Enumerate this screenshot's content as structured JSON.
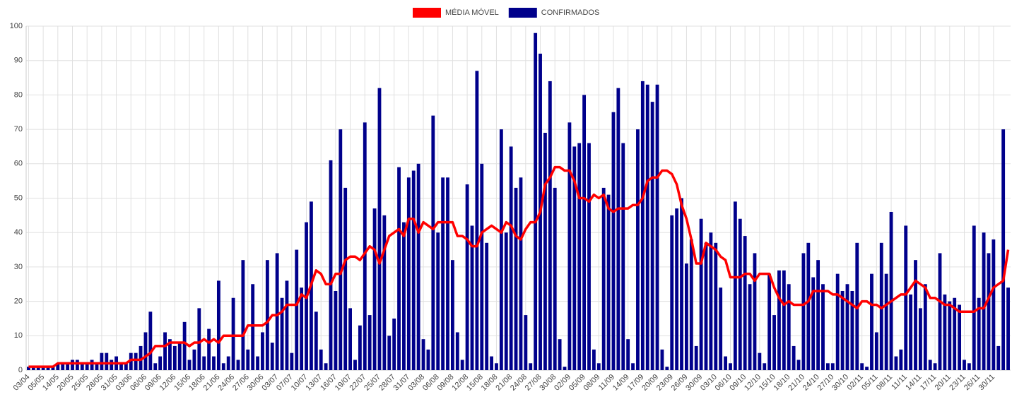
{
  "chart_data": {
    "type": "bar",
    "categories": [
      "03/04",
      null,
      null,
      "05/05",
      null,
      null,
      "14/05",
      null,
      null,
      "20/05",
      null,
      null,
      "25/05",
      null,
      null,
      "28/05",
      null,
      null,
      "31/05",
      null,
      null,
      "03/06",
      null,
      null,
      "06/06",
      null,
      null,
      "09/06",
      null,
      null,
      "12/06",
      null,
      null,
      "15/06",
      null,
      null,
      "18/06",
      null,
      null,
      "21/06",
      null,
      null,
      "24/06",
      null,
      null,
      "27/06",
      null,
      null,
      "30/06",
      null,
      null,
      "03/07",
      null,
      null,
      "07/07",
      null,
      null,
      "10/07",
      null,
      null,
      "13/07",
      null,
      null,
      "16/07",
      null,
      null,
      "19/07",
      null,
      null,
      "22/07",
      null,
      null,
      "25/07",
      null,
      null,
      "28/07",
      null,
      null,
      "31/07",
      null,
      null,
      "03/08",
      null,
      null,
      "06/08",
      null,
      null,
      "09/08",
      null,
      null,
      "12/08",
      null,
      null,
      "15/08",
      null,
      null,
      "18/08",
      null,
      null,
      "21/08",
      null,
      null,
      "24/08",
      null,
      null,
      "27/08",
      null,
      null,
      "30/08",
      null,
      null,
      "02/09",
      null,
      null,
      "05/09",
      null,
      null,
      "08/09",
      null,
      null,
      "11/09",
      null,
      null,
      "14/09",
      null,
      null,
      "17/09",
      null,
      null,
      "20/09",
      null,
      null,
      "23/09",
      null,
      null,
      "26/09",
      null,
      null,
      "30/09",
      null,
      null,
      "03/10",
      null,
      null,
      "06/10",
      null,
      null,
      "09/10",
      null,
      null,
      "12/10",
      null,
      null,
      "15/10",
      null,
      null,
      "18/10",
      null,
      null,
      "21/10",
      null,
      null,
      "24/10",
      null,
      null,
      "27/10",
      null,
      null,
      "30/10",
      null,
      null,
      "02/11",
      null,
      null,
      "05/11",
      null,
      null,
      "08/11",
      null,
      null,
      "11/11",
      null,
      null,
      "14/11",
      null,
      null,
      "17/11",
      null,
      null,
      "20/11",
      null,
      null,
      "23/11",
      null,
      null,
      "26/11",
      null,
      null,
      "30/11",
      null,
      null,
      null
    ],
    "series": [
      {
        "name": "MÉDIA MÓVEL",
        "type": "line",
        "color": "#ff0000",
        "values": [
          1,
          1,
          1,
          1,
          1,
          1,
          2,
          2,
          2,
          2,
          2,
          2,
          2,
          2,
          2,
          2,
          2,
          2,
          2,
          2,
          2,
          3,
          3,
          3,
          4,
          5,
          7,
          7,
          7,
          8,
          8,
          8,
          8,
          7,
          8,
          8,
          9,
          8,
          9,
          8,
          10,
          10,
          10,
          10,
          10,
          13,
          13,
          13,
          13,
          14,
          16,
          16,
          17,
          19,
          19,
          19,
          22,
          21,
          25,
          29,
          28,
          25,
          25,
          28,
          28,
          32,
          33,
          33,
          32,
          34,
          36,
          35,
          31,
          35,
          39,
          40,
          41,
          39,
          44,
          44,
          40,
          43,
          42,
          41,
          43,
          43,
          43,
          43,
          39,
          39,
          38,
          36,
          36,
          40,
          41,
          42,
          41,
          40,
          43,
          42,
          39,
          38,
          41,
          43,
          43,
          46,
          54,
          56,
          59,
          59,
          58,
          58,
          55,
          50,
          50,
          49,
          51,
          50,
          51,
          47,
          46,
          47,
          47,
          47,
          48,
          48,
          50,
          55,
          56,
          56,
          58,
          58,
          57,
          54,
          48,
          44,
          38,
          31,
          31,
          37,
          36,
          35,
          33,
          32,
          27,
          27,
          27,
          28,
          28,
          26,
          28,
          28,
          28,
          24,
          21,
          19,
          20,
          19,
          19,
          19,
          20,
          23,
          23,
          23,
          23,
          22,
          22,
          21,
          20,
          19,
          18,
          20,
          20,
          19,
          19,
          18,
          19,
          20,
          21,
          22,
          22,
          24,
          26,
          25,
          24,
          21,
          21,
          20,
          19,
          19,
          18,
          17,
          17,
          17,
          17,
          18,
          18,
          21,
          24,
          25,
          26,
          35
        ]
      },
      {
        "name": "CONFIRMADOS",
        "type": "bar",
        "color": "#00008b",
        "values": [
          1,
          1,
          1,
          1,
          1,
          1,
          2,
          2,
          2,
          3,
          3,
          2,
          2,
          3,
          2,
          5,
          5,
          3,
          4,
          2,
          2,
          5,
          5,
          7,
          11,
          17,
          2,
          4,
          11,
          9,
          7,
          8,
          14,
          3,
          6,
          18,
          4,
          12,
          4,
          26,
          2,
          4,
          21,
          3,
          32,
          6,
          25,
          4,
          11,
          32,
          8,
          34,
          21,
          26,
          5,
          35,
          24,
          43,
          49,
          17,
          6,
          2,
          61,
          23,
          70,
          53,
          18,
          3,
          13,
          72,
          16,
          47,
          82,
          45,
          10,
          15,
          59,
          43,
          56,
          58,
          60,
          9,
          6,
          74,
          40,
          56,
          56,
          32,
          11,
          3,
          54,
          42,
          87,
          60,
          37,
          4,
          2,
          70,
          40,
          65,
          53,
          56,
          16,
          2,
          98,
          92,
          69,
          84,
          53,
          9,
          1,
          72,
          65,
          66,
          80,
          66,
          6,
          2,
          53,
          51,
          75,
          82,
          66,
          9,
          2,
          70,
          84,
          83,
          78,
          83,
          6,
          1,
          45,
          47,
          50,
          31,
          38,
          7,
          44,
          37,
          40,
          37,
          24,
          4,
          2,
          49,
          44,
          39,
          25,
          34,
          5,
          2,
          28,
          16,
          29,
          29,
          25,
          7,
          3,
          34,
          37,
          27,
          32,
          25,
          2,
          2,
          28,
          23,
          25,
          23,
          37,
          2,
          1,
          28,
          11,
          37,
          28,
          46,
          4,
          6,
          42,
          22,
          32,
          18,
          25,
          3,
          2,
          34,
          22,
          20,
          21,
          19,
          3,
          2,
          42,
          21,
          40,
          34,
          38,
          7,
          70,
          24
        ]
      }
    ],
    "ylim": [
      0,
      100
    ],
    "yticks": [
      0,
      10,
      20,
      30,
      40,
      50,
      60,
      70,
      80,
      90,
      100
    ],
    "grid": true,
    "legend": "top"
  }
}
